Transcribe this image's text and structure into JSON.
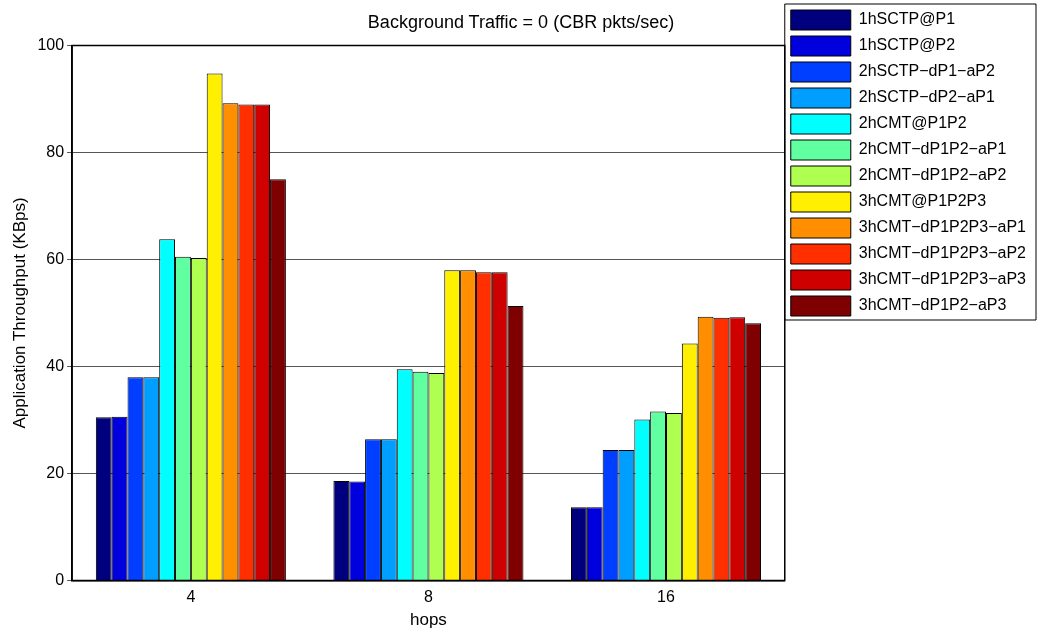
{
  "chart_data": {
    "type": "bar",
    "title": "Background Traffic = 0 (CBR pkts/sec)",
    "xlabel": "hops",
    "ylabel": "Application Throughput (KBps)",
    "categories": [
      "4",
      "8",
      "16"
    ],
    "ylim": [
      0,
      100
    ],
    "yticks": [
      0,
      20,
      40,
      60,
      80,
      100
    ],
    "grid": "y",
    "legend": "top right",
    "series": [
      {
        "name": "1hSCTP@P1",
        "color": "#00007f",
        "values": [
          30.5,
          18.6,
          13.7
        ]
      },
      {
        "name": "1hSCTP@P2",
        "color": "#0000df",
        "values": [
          30.6,
          18.5,
          13.7
        ]
      },
      {
        "name": "2hSCTP−dP1−aP2",
        "color": "#003fff",
        "values": [
          38,
          26.4,
          24.4
        ]
      },
      {
        "name": "2hSCTP−dP2−aP1",
        "color": "#009fff",
        "values": [
          38,
          26.4,
          24.4
        ]
      },
      {
        "name": "2hCMT@P1P2",
        "color": "#00ffff",
        "values": [
          63.8,
          39.5,
          30.1
        ]
      },
      {
        "name": "2hCMT−dP1P2−aP1",
        "color": "#60ff9f",
        "values": [
          60.5,
          39,
          31.6
        ]
      },
      {
        "name": "2hCMT−dP1P2−aP2",
        "color": "#afff50",
        "values": [
          60.3,
          38.8,
          31.3
        ]
      },
      {
        "name": "3hCMT@P1P2P3",
        "color": "#ffef00",
        "values": [
          94.8,
          58,
          44.3
        ]
      },
      {
        "name": "3hCMT−dP1P2P3−aP1",
        "color": "#ff8f00",
        "values": [
          89.2,
          58,
          49.3
        ]
      },
      {
        "name": "3hCMT−dP1P2P3−aP2",
        "color": "#ff2f00",
        "values": [
          89,
          57.6,
          49.1
        ]
      },
      {
        "name": "3hCMT−dP1P2P3−aP3",
        "color": "#cf0000",
        "values": [
          89,
          57.6,
          49.2
        ]
      },
      {
        "name": "3hCMT−dP1P2−aP3",
        "color": "#7f0000",
        "values": [
          75,
          51.3,
          48.1
        ]
      }
    ]
  }
}
